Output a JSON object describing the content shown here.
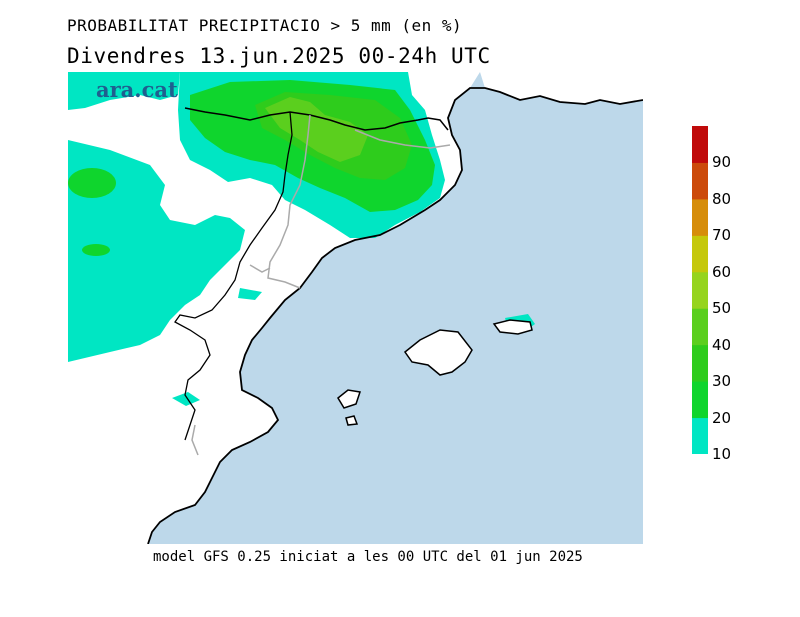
{
  "title_line1": "PROBABILITAT PRECIPITACIO > 5 mm (en %)",
  "title_line2": "Divendres  13.jun.2025 00-24h UTC",
  "logo_text": "ara.cat",
  "footer": "model GFS 0.25 iniciat a les 00 UTC del 01 jun 2025",
  "colors": {
    "sea": "#bdd8ea",
    "land": "#ffffff",
    "coast": "#000000",
    "border": "#aaaaaa"
  },
  "legend": {
    "labels": [
      "10",
      "20",
      "30",
      "40",
      "50",
      "60",
      "70",
      "80",
      "90"
    ],
    "classes": [
      {
        "from": 10,
        "to": 20,
        "color": "#00e6c3"
      },
      {
        "from": 20,
        "to": 30,
        "color": "#0fd52d"
      },
      {
        "from": 30,
        "to": 40,
        "color": "#2ecc1c"
      },
      {
        "from": 40,
        "to": 50,
        "color": "#5bcf1e"
      },
      {
        "from": 50,
        "to": 60,
        "color": "#96d41e"
      },
      {
        "from": 60,
        "to": 70,
        "color": "#c5c80b"
      },
      {
        "from": 70,
        "to": 80,
        "color": "#d68d0a"
      },
      {
        "from": 80,
        "to": 90,
        "color": "#cc4a0a"
      },
      {
        "from": 90,
        "to": 100,
        "color": "#c00a0a"
      }
    ]
  }
}
